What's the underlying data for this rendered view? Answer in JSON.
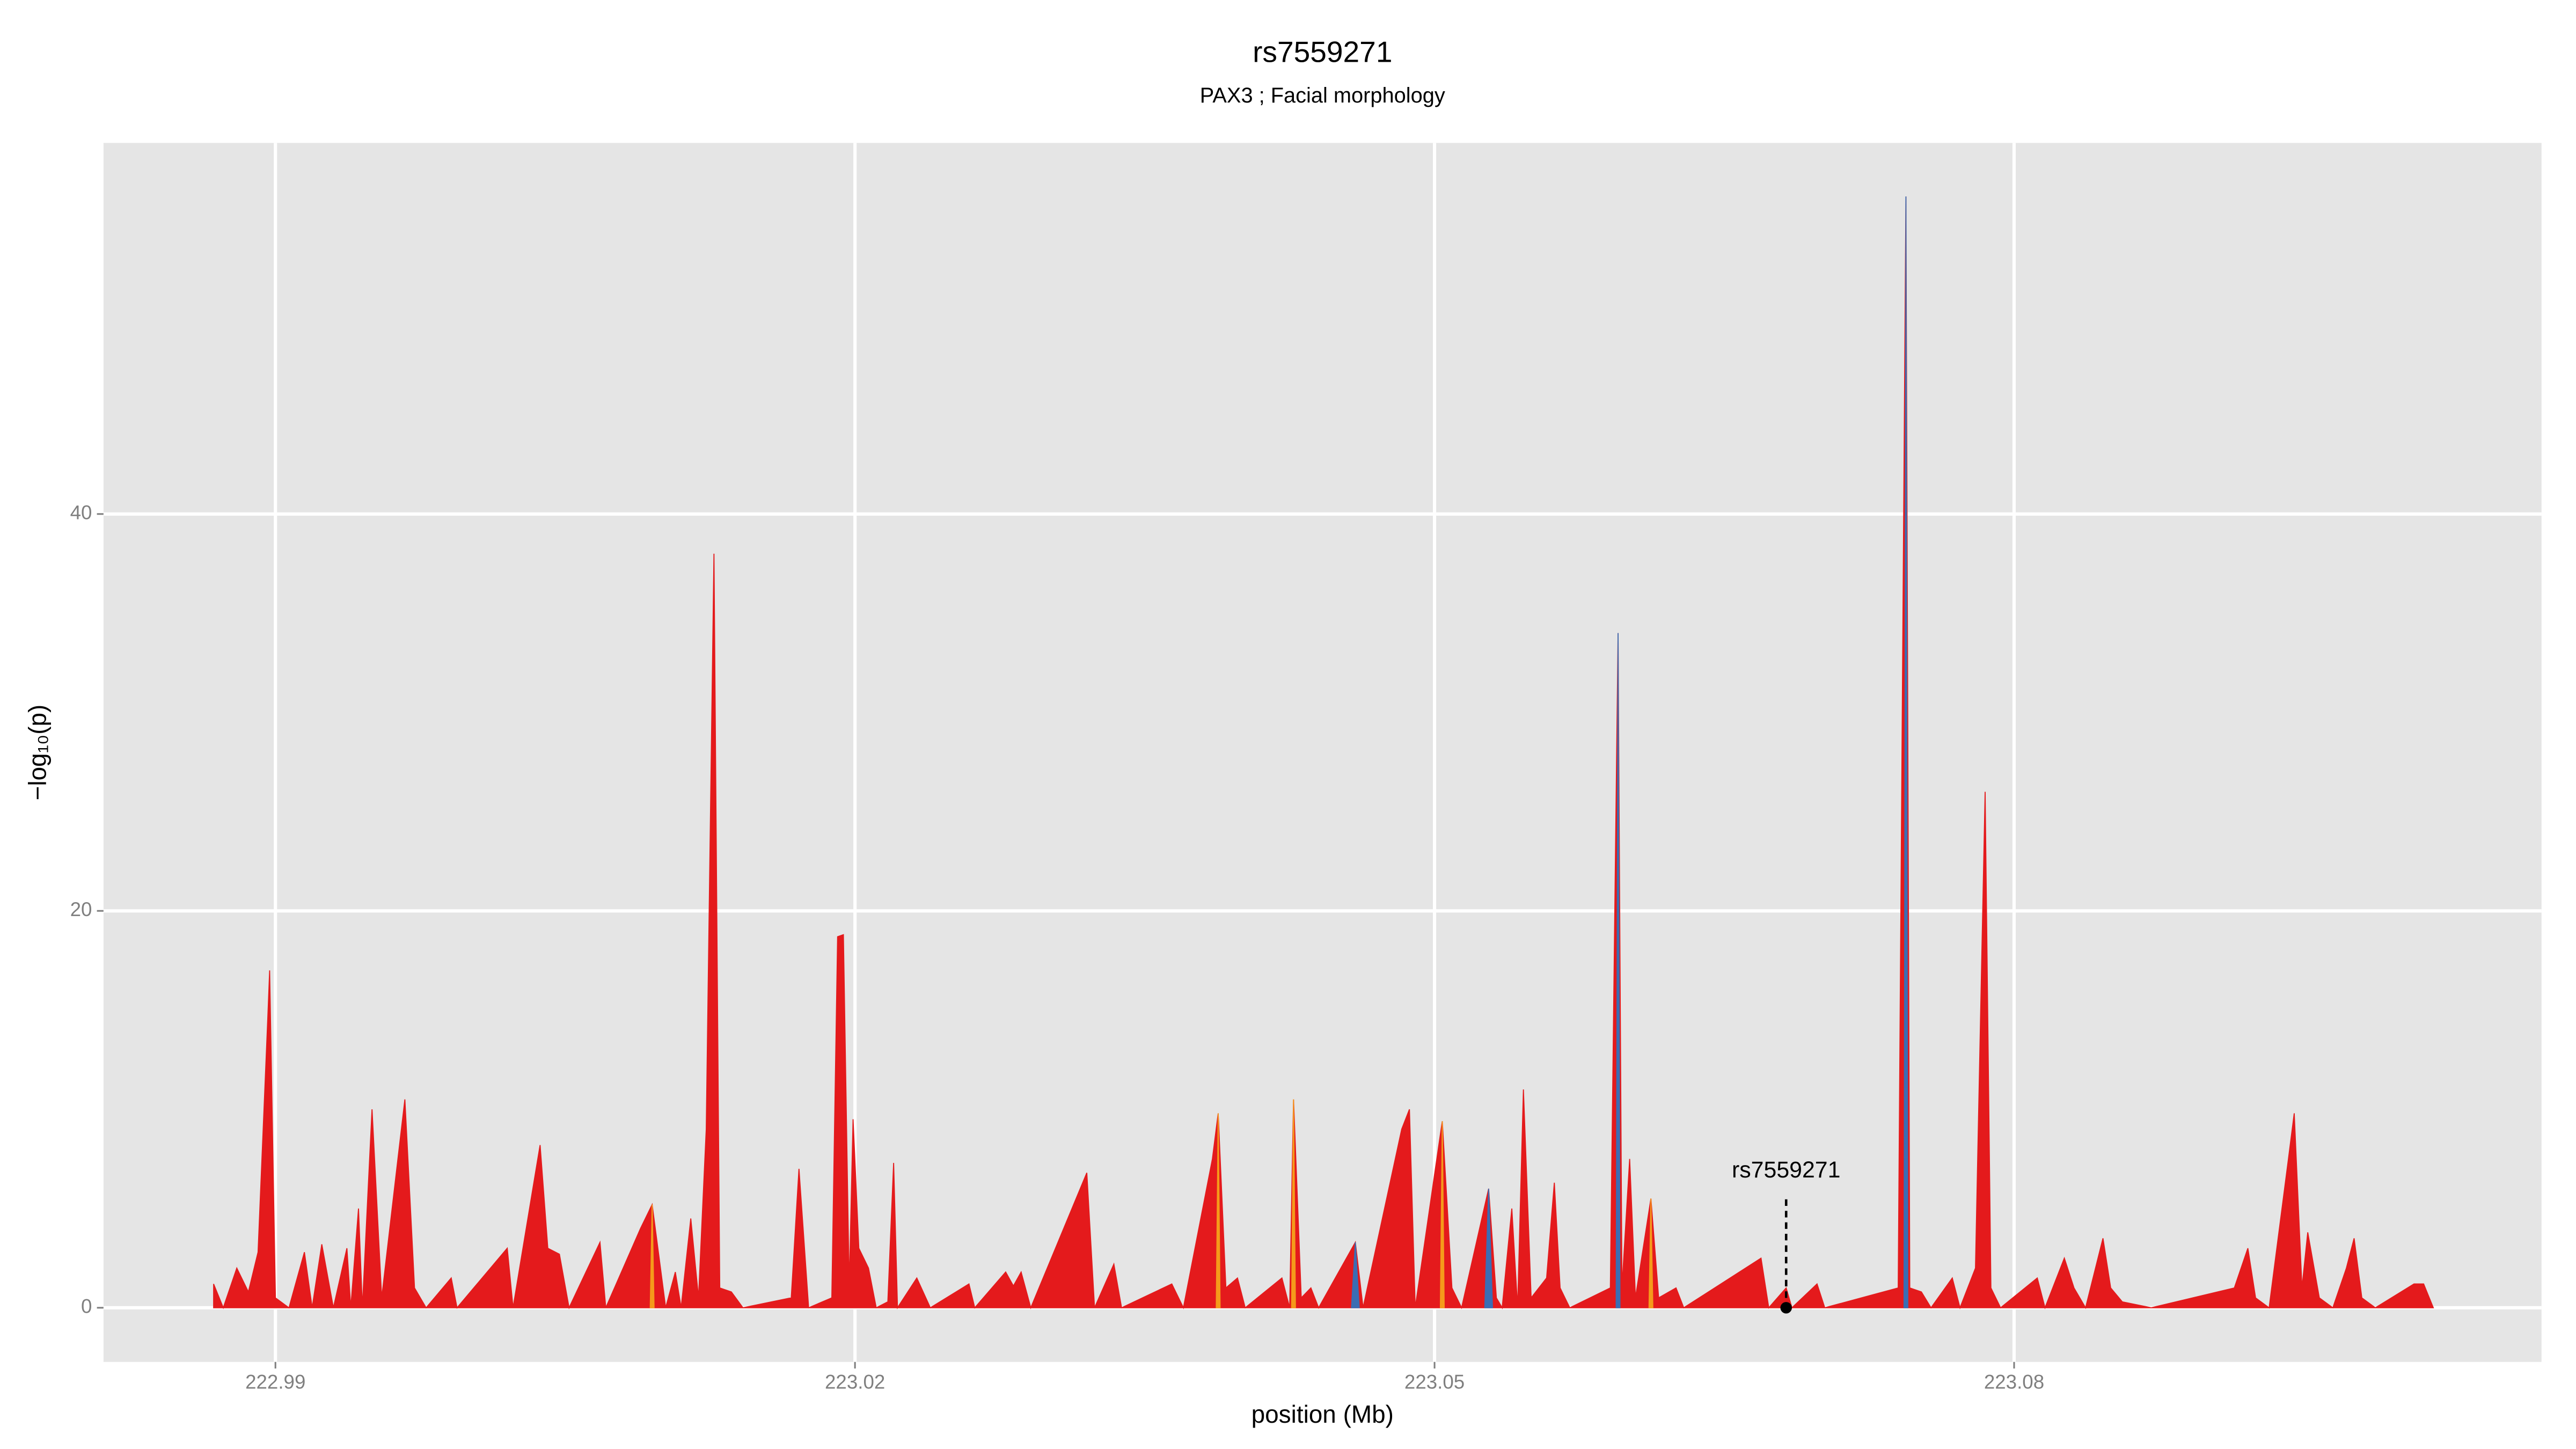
{
  "chart_data": {
    "type": "area",
    "title": "rs7559271",
    "subtitle": "PAX3 ; Facial morphology",
    "x_label": "position (Mb)",
    "y_label": "−log₁₀(p)",
    "xlim": [
      222.9811,
      223.1073
    ],
    "ylim": [
      -2.73,
      58.7
    ],
    "xticks": [
      222.99,
      223.02,
      223.05,
      223.08
    ],
    "yticks": [
      0,
      20,
      40
    ],
    "grid": true,
    "series": [
      {
        "name": "red",
        "color": "#e41a1c",
        "x": [
          222.9868,
          222.9873,
          222.988,
          222.9886,
          222.9891,
          222.9896,
          222.9897,
          222.99,
          222.9907,
          222.9915,
          222.9919,
          222.9924,
          222.993,
          222.9937,
          222.9939,
          222.9943,
          222.9945,
          222.995,
          222.9955,
          222.9967,
          222.9972,
          222.9978,
          222.9991,
          222.9994,
          223.002,
          223.0023,
          223.0037,
          223.0041,
          223.0047,
          223.0052,
          223.0068,
          223.0071,
          223.0089,
          223.0095,
          223.0102,
          223.0107,
          223.011,
          223.0115,
          223.0119,
          223.0123,
          223.0127,
          223.013,
          223.0136,
          223.0142,
          223.0167,
          223.0171,
          223.0176,
          223.0188,
          223.0191,
          223.0194,
          223.0197,
          223.0199,
          223.0202,
          223.0207,
          223.0211,
          223.0217,
          223.022,
          223.0222,
          223.0232,
          223.0239,
          223.0259,
          223.0262,
          223.0278,
          223.0282,
          223.0286,
          223.0291,
          223.032,
          223.0324,
          223.0334,
          223.0338,
          223.0364,
          223.037,
          223.0385,
          223.0388,
          223.0392,
          223.0398,
          223.0402,
          223.0421,
          223.0425,
          223.0427,
          223.0431,
          223.0436,
          223.044,
          223.0459,
          223.0463,
          223.0483,
          223.0487,
          223.049,
          223.0504,
          223.0509,
          223.0514,
          223.0528,
          223.0532,
          223.0535,
          223.054,
          223.0543,
          223.0546,
          223.055,
          223.0558,
          223.0562,
          223.0565,
          223.057,
          223.0591,
          223.0595,
          223.0597,
          223.0601,
          223.0604,
          223.0612,
          223.0616,
          223.0625,
          223.0629,
          223.0669,
          223.0673,
          223.0682,
          223.0685,
          223.0698,
          223.0702,
          223.074,
          223.0744,
          223.0746,
          223.0752,
          223.0757,
          223.0768,
          223.0772,
          223.078,
          223.0785,
          223.0788,
          223.0793,
          223.0812,
          223.0816,
          223.0826,
          223.0831,
          223.0837,
          223.0846,
          223.085,
          223.0856,
          223.0871,
          223.0914,
          223.0921,
          223.0925,
          223.0932,
          223.0942,
          223.0945,
          223.0949,
          223.0952,
          223.0958,
          223.0965,
          223.0972,
          223.0976,
          223.098,
          223.0987,
          223.1007,
          223.1012,
          223.1017
        ],
        "values": [
          1.2,
          0,
          2,
          0.8,
          2.8,
          14.5,
          17,
          0.5,
          0,
          2.8,
          0,
          3.2,
          0,
          3,
          0,
          5,
          0,
          10,
          0.5,
          10.5,
          1,
          0,
          1.5,
          0,
          3,
          0,
          8.2,
          3,
          2.7,
          0,
          3.3,
          0,
          4,
          5.2,
          0,
          1.8,
          0,
          4.5,
          0.5,
          9,
          38,
          1,
          0.8,
          0,
          0.5,
          7,
          0,
          0.5,
          18.7,
          18.8,
          1,
          9.5,
          3,
          2,
          0,
          0.3,
          7.3,
          0,
          1.5,
          0,
          1.2,
          0,
          1.8,
          1.1,
          1.8,
          0,
          6.8,
          0,
          2.2,
          0,
          1.2,
          0,
          7.5,
          9.8,
          1,
          1.5,
          0,
          1.5,
          0,
          10.5,
          0.5,
          1,
          0,
          3.3,
          0,
          9,
          10,
          0,
          9.4,
          1,
          0,
          6,
          0.5,
          0,
          5,
          0,
          11,
          0.5,
          1.5,
          6.3,
          1,
          0,
          1,
          34,
          1,
          7.5,
          0.5,
          5.5,
          0.5,
          1,
          0,
          2.5,
          0,
          1,
          0,
          1.2,
          0,
          1,
          56,
          1,
          0.8,
          0,
          1.5,
          0,
          2,
          26,
          1,
          0,
          1.5,
          0,
          2.5,
          1,
          0,
          3.5,
          1,
          0.3,
          0,
          1,
          3,
          0.5,
          0,
          7.5,
          9.8,
          1,
          3.8,
          0.5,
          0,
          2,
          3.5,
          0.5,
          0,
          1.2,
          1.2,
          0
        ]
      },
      {
        "name": "orange",
        "color": "#f59a1b",
        "x": [
          223.0094,
          223.0095,
          223.0096,
          null,
          223.0387,
          223.0388,
          223.0389,
          null,
          223.0426,
          223.0427,
          223.0428,
          null,
          223.0503,
          223.0504,
          223.0505,
          null,
          223.0611,
          223.0612,
          223.0613
        ],
        "values": [
          0,
          5.2,
          0,
          null,
          0,
          9.8,
          0,
          null,
          0,
          10.5,
          0,
          null,
          0,
          9.4,
          0,
          null,
          0,
          5.5,
          0
        ]
      },
      {
        "name": "blue",
        "color": "#3b6db3",
        "x": [
          223.0457,
          223.0459,
          223.0461,
          null,
          223.0526,
          223.0528,
          223.053,
          null,
          223.0594,
          223.0595,
          223.0596,
          null,
          223.0743,
          223.0744,
          223.0745
        ],
        "values": [
          0,
          3.3,
          0,
          null,
          0,
          6,
          0,
          null,
          0,
          34,
          0,
          null,
          0,
          56,
          0
        ]
      }
    ],
    "annotation": {
      "label": "rs7559271",
      "x": 223.0682,
      "y": 0
    }
  }
}
